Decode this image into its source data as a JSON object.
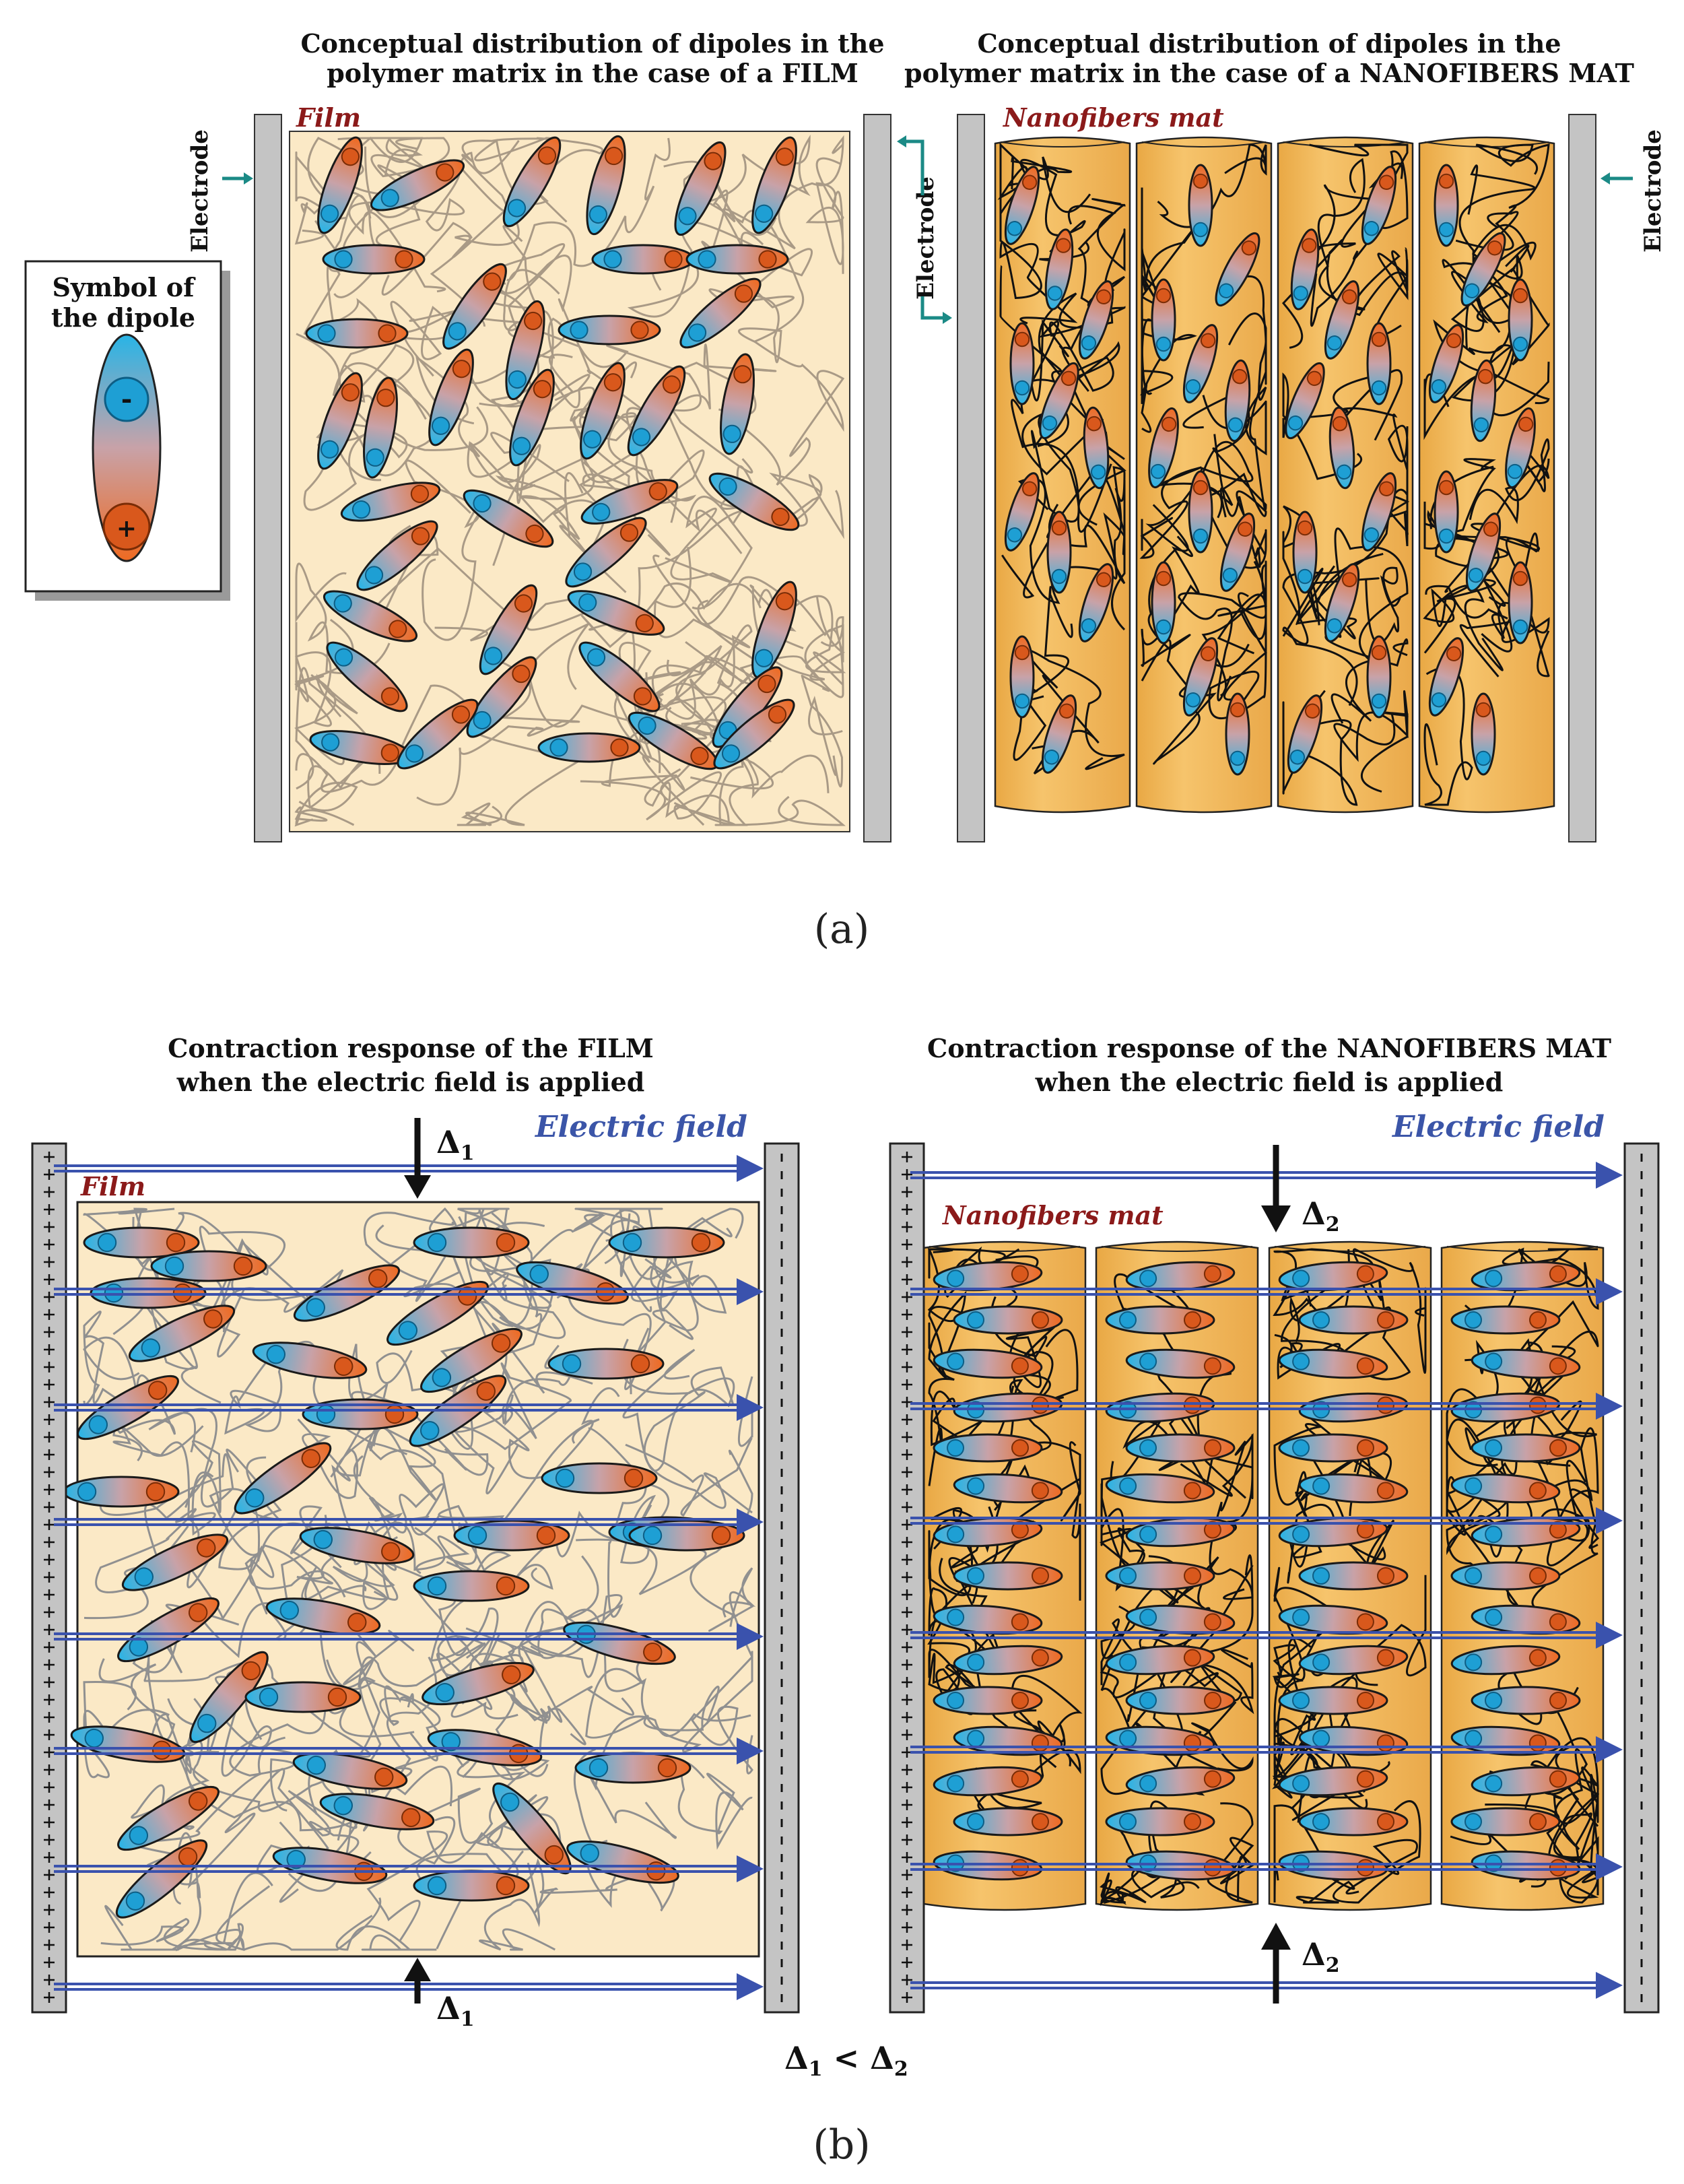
{
  "panel_a": {
    "title_left_line1": "Conceptual distribution of dipoles in the",
    "title_left_line2": "polymer matrix in the case of a FILM",
    "title_right_line1": "Conceptual distribution of dipoles in the",
    "title_right_line2": "polymer matrix in the case of a NANOFIBERS MAT",
    "film_label": "Film",
    "nanofibers_label": "Nanofibers mat",
    "electrode_label": "Electrode",
    "symbol_title_line1": "Symbol of",
    "symbol_title_line2": "the dipole",
    "minus_sign": "-",
    "plus_sign": "+",
    "caption": "(a)"
  },
  "panel_b": {
    "title_left_line1": "Contraction response of the FILM",
    "title_left_line2": "when the electric field is applied",
    "title_right_line1": "Contraction response of the NANOFIBERS MAT",
    "title_right_line2": "when the electric field is applied",
    "electric_field_label": "Electric field",
    "film_label": "Film",
    "nanofibers_label": "Nanofibers mat",
    "delta1": "Δ",
    "delta1_sub": "1",
    "delta2": "Δ",
    "delta2_sub": "2",
    "comparison_delta": "Δ",
    "comparison_sub1": "1",
    "comparison_op": " < ",
    "comparison_sub2": "2",
    "caption": "(b)"
  },
  "colors": {
    "film_bg": "#fbe9c6",
    "fiber_fill": "#f2b95a",
    "electrode": "#c4c4c4",
    "dipole_negative": "#28b4e6",
    "dipole_positive": "#ee6a22",
    "field_arrow": "#3a52ad",
    "teal_arrow": "#1b8a86",
    "title_red": "#8b1a1a"
  }
}
